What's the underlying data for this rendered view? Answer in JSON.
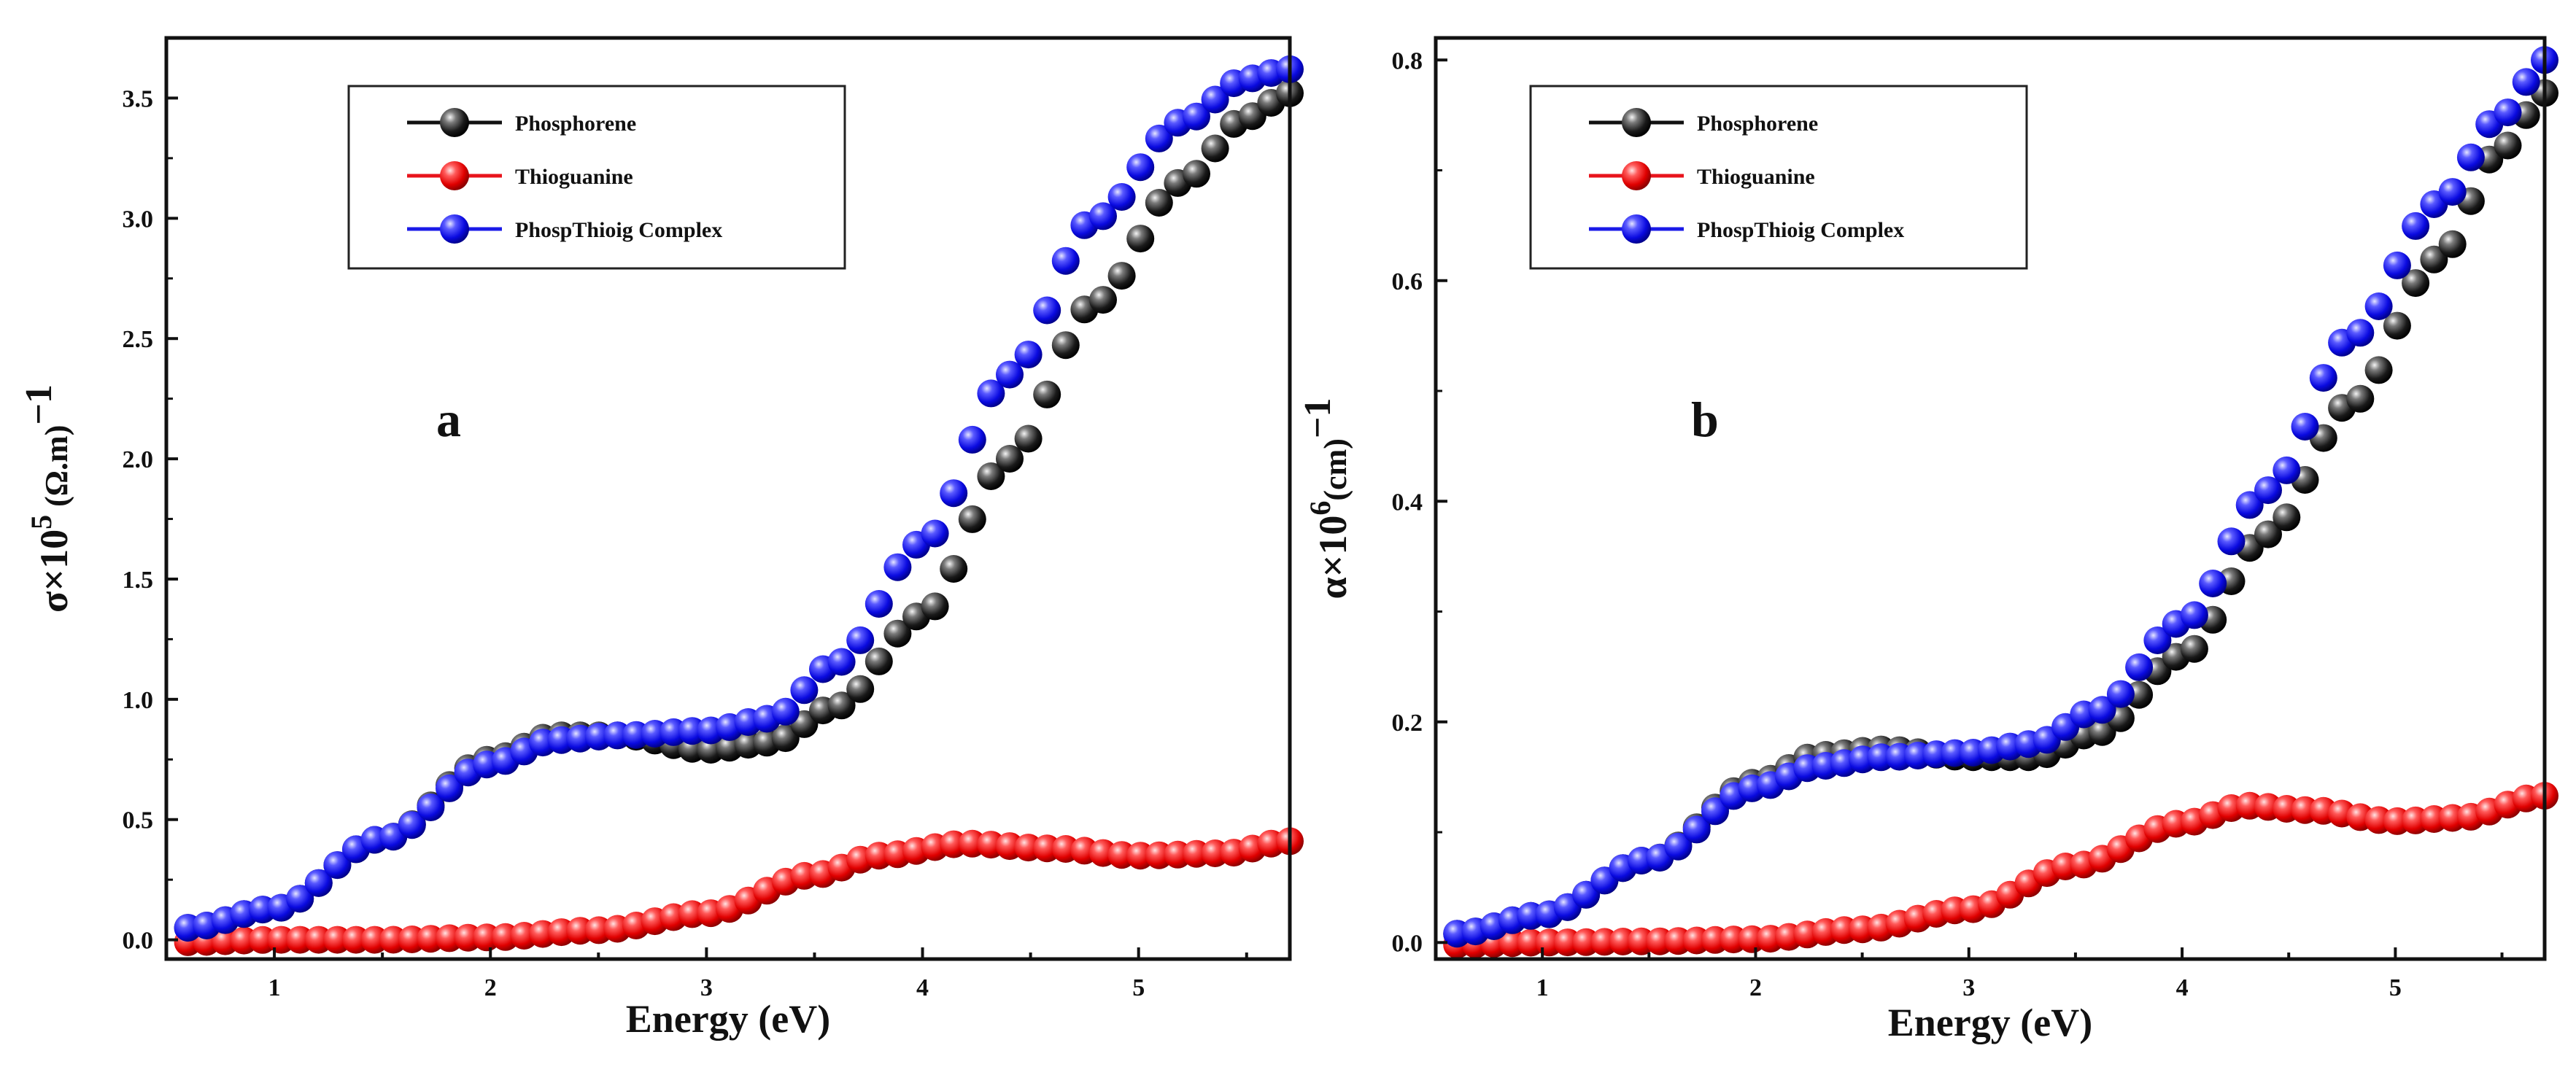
{
  "chart_data": [
    {
      "type": "scatter",
      "panel_label": "a",
      "xlabel": "Energy (eV)",
      "ylabel": {
        "base": "σ×10",
        "exp": "5",
        "unit": " (Ω.m)",
        "unit_exp": "−1"
      },
      "xlim": [
        0.5,
        5.7
      ],
      "ylim": [
        -0.08,
        3.75
      ],
      "xticks": [
        1,
        2,
        3,
        4,
        5
      ],
      "xtick_labels": [
        "1",
        "2",
        "3",
        "4",
        "5"
      ],
      "yticks": [
        0,
        0.5,
        1.0,
        1.5,
        2.0,
        2.5,
        3.0,
        3.5
      ],
      "ytick_labels": [
        "0.0",
        "0.5",
        "1.0",
        "1.5",
        "2.0",
        "2.5",
        "3.0",
        "3.5"
      ],
      "legend_position": "top-left",
      "series_control_points": [
        {
          "name": "Phosphorene",
          "color": "#111111",
          "points": [
            [
              0.6,
              0.05
            ],
            [
              1.0,
              0.13
            ],
            [
              1.5,
              0.42
            ],
            [
              2.0,
              0.75
            ],
            [
              2.3,
              0.85
            ],
            [
              2.6,
              0.85
            ],
            [
              3.0,
              0.79
            ],
            [
              3.3,
              0.82
            ],
            [
              3.6,
              0.97
            ],
            [
              4.0,
              1.35
            ],
            [
              4.4,
              2.0
            ],
            [
              4.8,
              2.65
            ],
            [
              5.2,
              3.15
            ],
            [
              5.5,
              3.42
            ],
            [
              5.7,
              3.52
            ]
          ]
        },
        {
          "name": "Thioguanine",
          "color": "#e8141c",
          "points": [
            [
              0.6,
              -0.01
            ],
            [
              1.0,
              0.0
            ],
            [
              1.5,
              0.0
            ],
            [
              2.0,
              0.01
            ],
            [
              2.5,
              0.04
            ],
            [
              3.0,
              0.11
            ],
            [
              3.5,
              0.27
            ],
            [
              3.8,
              0.35
            ],
            [
              4.2,
              0.4
            ],
            [
              4.6,
              0.38
            ],
            [
              5.0,
              0.35
            ],
            [
              5.4,
              0.36
            ],
            [
              5.7,
              0.41
            ]
          ]
        },
        {
          "name": "PhospThioig Complex",
          "color": "#1a1ae8",
          "points": [
            [
              0.6,
              0.05
            ],
            [
              1.0,
              0.13
            ],
            [
              1.5,
              0.42
            ],
            [
              2.0,
              0.73
            ],
            [
              2.3,
              0.83
            ],
            [
              2.6,
              0.85
            ],
            [
              3.0,
              0.87
            ],
            [
              3.3,
              0.92
            ],
            [
              3.6,
              1.15
            ],
            [
              4.0,
              1.65
            ],
            [
              4.4,
              2.35
            ],
            [
              4.8,
              3.0
            ],
            [
              5.2,
              3.4
            ],
            [
              5.5,
              3.58
            ],
            [
              5.7,
              3.62
            ]
          ]
        }
      ]
    },
    {
      "type": "scatter",
      "panel_label": "b",
      "xlabel": "Energy (eV)",
      "ylabel": {
        "base": "α×10",
        "exp": "6",
        "unit": "(cm)",
        "unit_exp": "−1"
      },
      "xlim": [
        0.5,
        5.7
      ],
      "ylim": [
        -0.015,
        0.82
      ],
      "xticks": [
        1,
        2,
        3,
        4,
        5
      ],
      "xtick_labels": [
        "1",
        "2",
        "3",
        "4",
        "5"
      ],
      "yticks": [
        0,
        0.2,
        0.4,
        0.6,
        0.8
      ],
      "ytick_labels": [
        "0.0",
        "0.2",
        "0.4",
        "0.6",
        "0.8"
      ],
      "legend_position": "top-left",
      "series_control_points": [
        {
          "name": "Phosphorene",
          "color": "#111111",
          "points": [
            [
              0.6,
              0.008
            ],
            [
              1.0,
              0.025
            ],
            [
              1.5,
              0.075
            ],
            [
              2.0,
              0.145
            ],
            [
              2.3,
              0.17
            ],
            [
              2.6,
              0.175
            ],
            [
              3.0,
              0.168
            ],
            [
              3.3,
              0.168
            ],
            [
              3.6,
              0.19
            ],
            [
              4.0,
              0.26
            ],
            [
              4.4,
              0.37
            ],
            [
              4.8,
              0.49
            ],
            [
              5.2,
              0.62
            ],
            [
              5.5,
              0.72
            ],
            [
              5.7,
              0.77
            ]
          ]
        },
        {
          "name": "Thioguanine",
          "color": "#e8141c",
          "points": [
            [
              0.6,
              -0.002
            ],
            [
              1.0,
              0.0
            ],
            [
              1.5,
              0.001
            ],
            [
              2.0,
              0.003
            ],
            [
              2.5,
              0.012
            ],
            [
              3.0,
              0.03
            ],
            [
              3.5,
              0.07
            ],
            [
              4.0,
              0.108
            ],
            [
              4.3,
              0.124
            ],
            [
              4.6,
              0.12
            ],
            [
              5.0,
              0.11
            ],
            [
              5.3,
              0.113
            ],
            [
              5.7,
              0.133
            ]
          ]
        },
        {
          "name": "PhospThioig Complex",
          "color": "#1a1ae8",
          "points": [
            [
              0.6,
              0.008
            ],
            [
              1.0,
              0.025
            ],
            [
              1.5,
              0.075
            ],
            [
              2.0,
              0.14
            ],
            [
              2.3,
              0.16
            ],
            [
              2.6,
              0.168
            ],
            [
              3.0,
              0.172
            ],
            [
              3.3,
              0.18
            ],
            [
              3.6,
              0.21
            ],
            [
              4.0,
              0.29
            ],
            [
              4.4,
              0.41
            ],
            [
              4.8,
              0.55
            ],
            [
              5.2,
              0.67
            ],
            [
              5.5,
              0.75
            ],
            [
              5.7,
              0.8
            ]
          ]
        }
      ]
    }
  ]
}
